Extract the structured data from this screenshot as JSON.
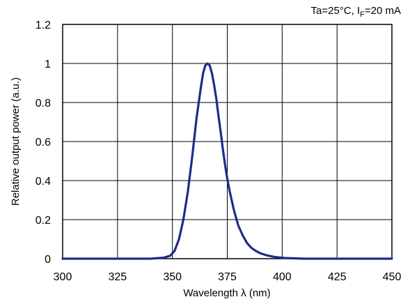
{
  "chart_data": {
    "type": "line",
    "annotation": {
      "prefix": "Ta=25°C, I",
      "subscript": "F",
      "suffix": "=20 mA"
    },
    "xlabel": "Wavelength λ (nm)",
    "ylabel": "Relative output power (a.u.)",
    "xlim": [
      300,
      450
    ],
    "ylim": [
      0,
      1.2
    ],
    "xticks": [
      "300",
      "325",
      "350",
      "375",
      "400",
      "425",
      "450"
    ],
    "yticks": [
      "0",
      "0.2",
      "0.4",
      "0.6",
      "0.8",
      "1",
      "1.2"
    ],
    "grid": true,
    "legend": "none",
    "series": [
      {
        "color": "#1f2a8a",
        "x": [
          300,
          340,
          346,
          349,
          351,
          353,
          355,
          357,
          359,
          361,
          363,
          364,
          365,
          366,
          367,
          368,
          369,
          370,
          371,
          372,
          373,
          374,
          375,
          376,
          377,
          378,
          379,
          380,
          382,
          384,
          386,
          388,
          390,
          393,
          397,
          402,
          410,
          450
        ],
        "y": [
          0,
          0,
          0.005,
          0.015,
          0.04,
          0.1,
          0.2,
          0.34,
          0.52,
          0.72,
          0.88,
          0.95,
          0.99,
          1.0,
          0.99,
          0.95,
          0.89,
          0.82,
          0.73,
          0.65,
          0.56,
          0.48,
          0.41,
          0.35,
          0.3,
          0.25,
          0.21,
          0.17,
          0.12,
          0.08,
          0.055,
          0.04,
          0.028,
          0.017,
          0.008,
          0.003,
          0.0,
          0
        ]
      }
    ]
  }
}
